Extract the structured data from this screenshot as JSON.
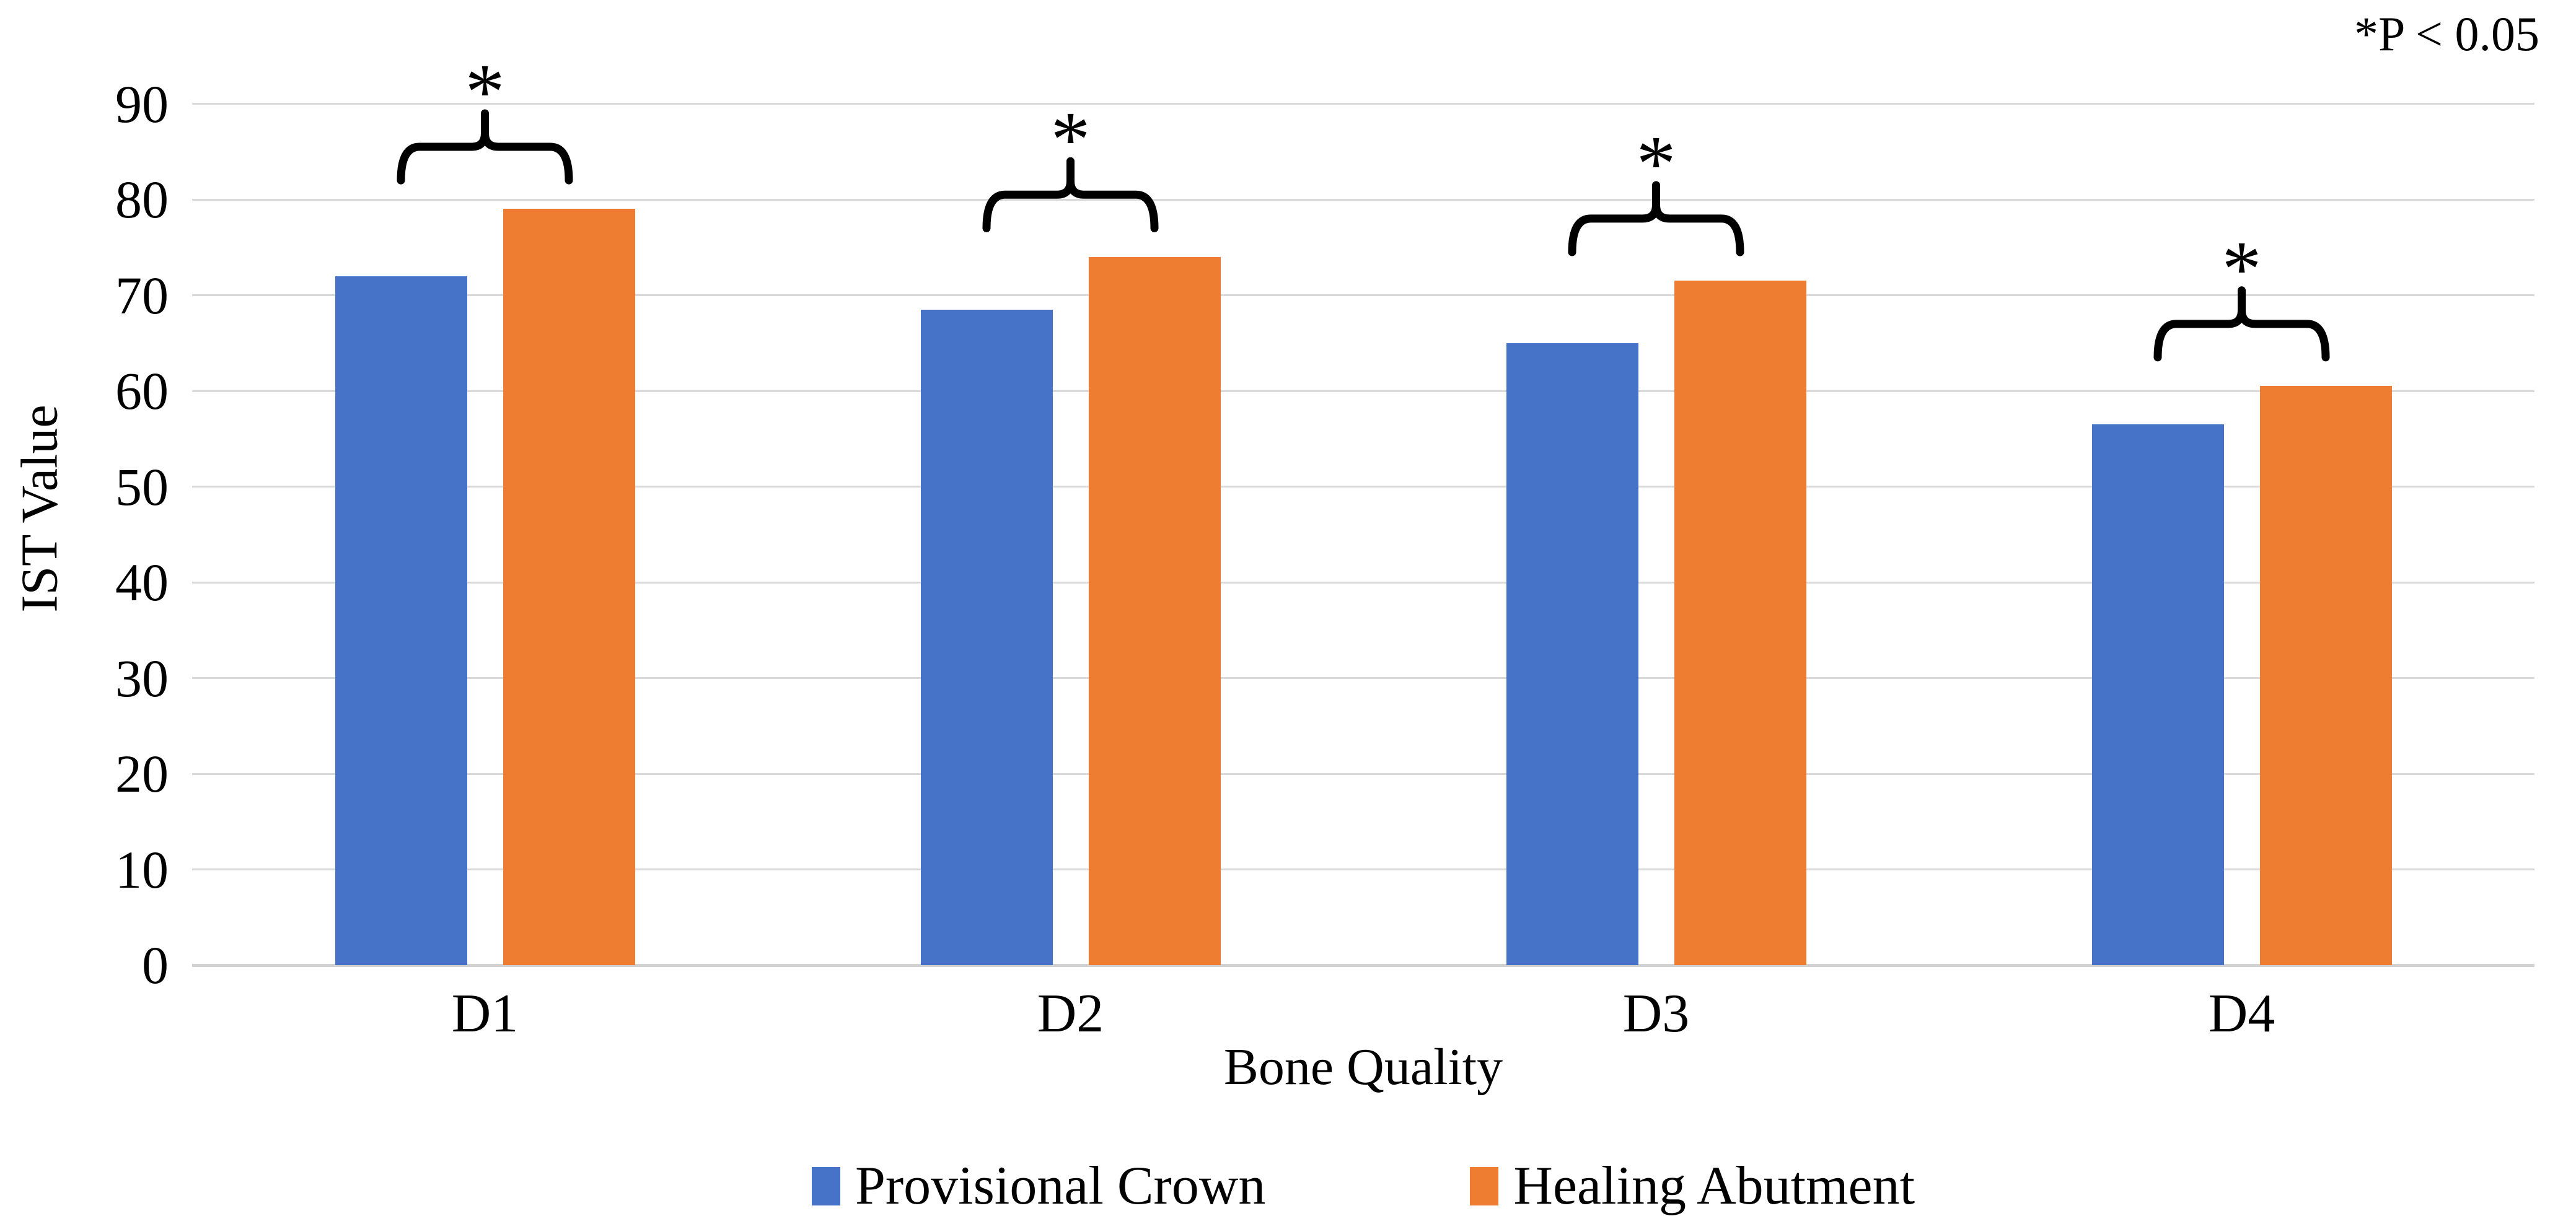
{
  "annotation": {
    "text": "*P < 0.05"
  },
  "chart_data": {
    "type": "bar",
    "title": "",
    "categories": [
      "D1",
      "D2",
      "D3",
      "D4"
    ],
    "series": [
      {
        "name": "Provisional Crown",
        "color": "#4673C8",
        "values": [
          72,
          68.5,
          65,
          56.5
        ]
      },
      {
        "name": "Healing Abutment",
        "color": "#EE7D31",
        "values": [
          79,
          74,
          71.5,
          60.5
        ]
      }
    ],
    "xlabel": "Bone Quality",
    "ylabel": "IST Value",
    "yticks": [
      0,
      10,
      20,
      30,
      40,
      50,
      60,
      70,
      80,
      90
    ],
    "ylim": [
      0,
      95
    ],
    "grid": true,
    "gridline_color": "#D9D9D9",
    "legend_position": "bottom",
    "significance": {
      "marker": "*",
      "note": "*P < 0.05",
      "significant_groups": [
        "D1",
        "D2",
        "D3",
        "D4"
      ]
    }
  },
  "legend": {
    "items": [
      {
        "label": "Provisional Crown",
        "color": "#4673C8"
      },
      {
        "label": "Healing Abutment",
        "color": "#EE7D31"
      }
    ]
  }
}
